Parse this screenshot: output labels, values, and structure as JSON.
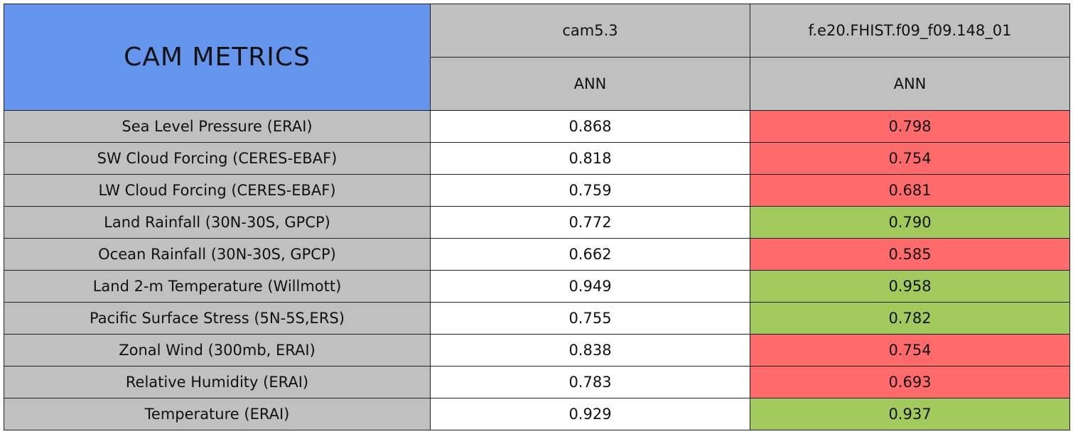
{
  "header": {
    "title": "CAM METRICS",
    "models": [
      "cam5.3",
      "f.e20.FHIST.f09_f09.148_01"
    ],
    "seasons": [
      "ANN",
      "ANN"
    ]
  },
  "settings": {
    "title_color": "#6595ec",
    "header_color": "#c0c0c0",
    "label_color": "#c0c0c0",
    "base_color": "#ffffff",
    "better_color": "#a2c95b",
    "worse_color": "#ff6b6b"
  },
  "table": {
    "rows": [
      [
        "Sea Level Pressure (ERAI)",
        "0.868",
        "0.798"
      ],
      [
        "SW Cloud Forcing (CERES-EBAF)",
        "0.818",
        "0.754"
      ],
      [
        "LW Cloud Forcing (CERES-EBAF)",
        "0.759",
        "0.681"
      ],
      [
        "Land Rainfall (30N-30S, GPCP)",
        "0.772",
        "0.790"
      ],
      [
        "Ocean Rainfall (30N-30S, GPCP)",
        "0.662",
        "0.585"
      ],
      [
        "Land 2-m Temperature (Willmott)",
        "0.949",
        "0.958"
      ],
      [
        "Pacific Surface Stress (5N-5S,ERS)",
        "0.755",
        "0.782"
      ],
      [
        "Zonal Wind (300mb, ERAI)",
        "0.838",
        "0.754"
      ],
      [
        "Relative Humidity (ERAI)",
        "0.783",
        "0.693"
      ],
      [
        "Temperature (ERAI)",
        "0.929",
        "0.937"
      ]
    ]
  }
}
